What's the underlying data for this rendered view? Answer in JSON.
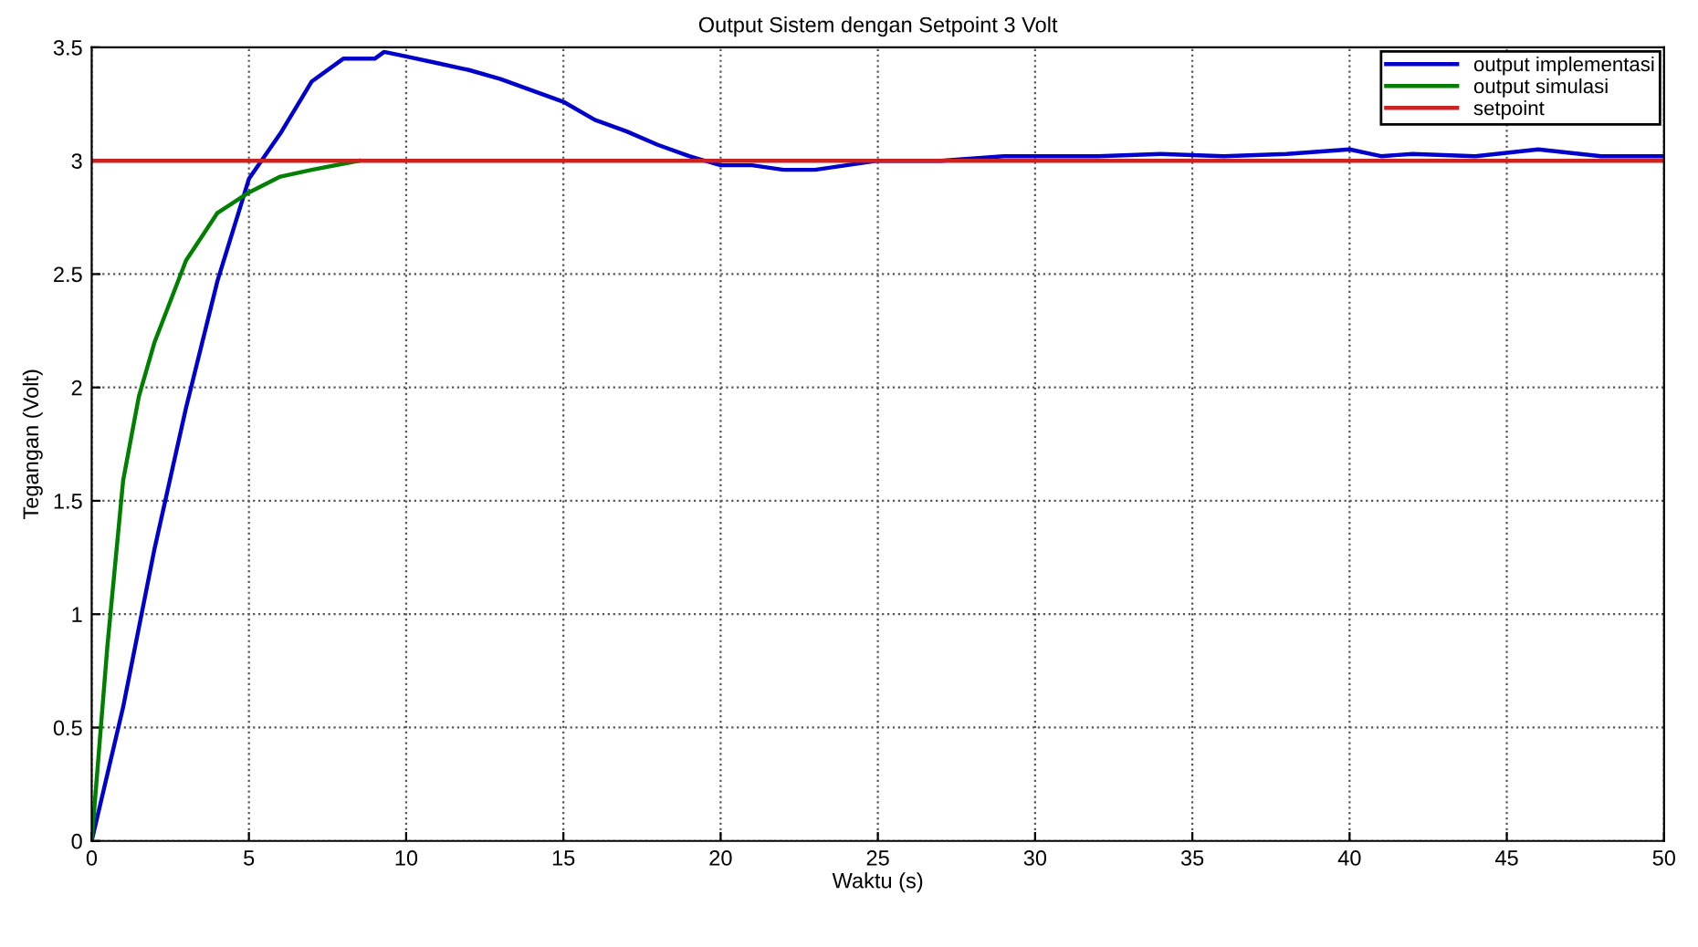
{
  "chart_data": {
    "type": "line",
    "title": "Output Sistem dengan Setpoint 3 Volt",
    "xlabel": "Waktu (s)",
    "ylabel": "Tegangan (Volt)",
    "xlim": [
      0,
      50
    ],
    "ylim": [
      0,
      3.5
    ],
    "xticks": [
      0,
      5,
      10,
      15,
      20,
      25,
      30,
      35,
      40,
      45,
      50
    ],
    "yticks": [
      0,
      0.5,
      1,
      1.5,
      2,
      2.5,
      3,
      3.5
    ],
    "grid": true,
    "legend": "top right",
    "line_style": "solid",
    "marker": "none",
    "series": [
      {
        "name": "output implementasi",
        "color": "#0000cc",
        "x": [
          0,
          1,
          2,
          3,
          4,
          5,
          6,
          7,
          8,
          9,
          9.3,
          10,
          11,
          12,
          13,
          14,
          15,
          16,
          17,
          18,
          19,
          20,
          21,
          22,
          23,
          24,
          25,
          27,
          29,
          30,
          32,
          34,
          36,
          38,
          40,
          41,
          42,
          44,
          46,
          48,
          50
        ],
        "values": [
          0,
          0.59,
          1.29,
          1.91,
          2.47,
          2.92,
          3.12,
          3.35,
          3.45,
          3.45,
          3.48,
          3.46,
          3.43,
          3.4,
          3.36,
          3.31,
          3.26,
          3.18,
          3.13,
          3.07,
          3.02,
          2.98,
          2.98,
          2.96,
          2.96,
          2.98,
          3.0,
          3.0,
          3.02,
          3.02,
          3.02,
          3.03,
          3.02,
          3.03,
          3.05,
          3.02,
          3.03,
          3.02,
          3.05,
          3.02,
          3.02
        ]
      },
      {
        "name": "output simulasi",
        "color": "#008000",
        "x": [
          0,
          0.5,
          1,
          1.5,
          2,
          3,
          4,
          5,
          6,
          7,
          8.5
        ],
        "values": [
          0,
          0.86,
          1.59,
          1.96,
          2.2,
          2.56,
          2.77,
          2.86,
          2.93,
          2.96,
          3.0
        ]
      },
      {
        "name": "setpoint",
        "color": "#cc2222",
        "x": [
          0,
          50
        ],
        "values": [
          3,
          3
        ]
      }
    ]
  }
}
